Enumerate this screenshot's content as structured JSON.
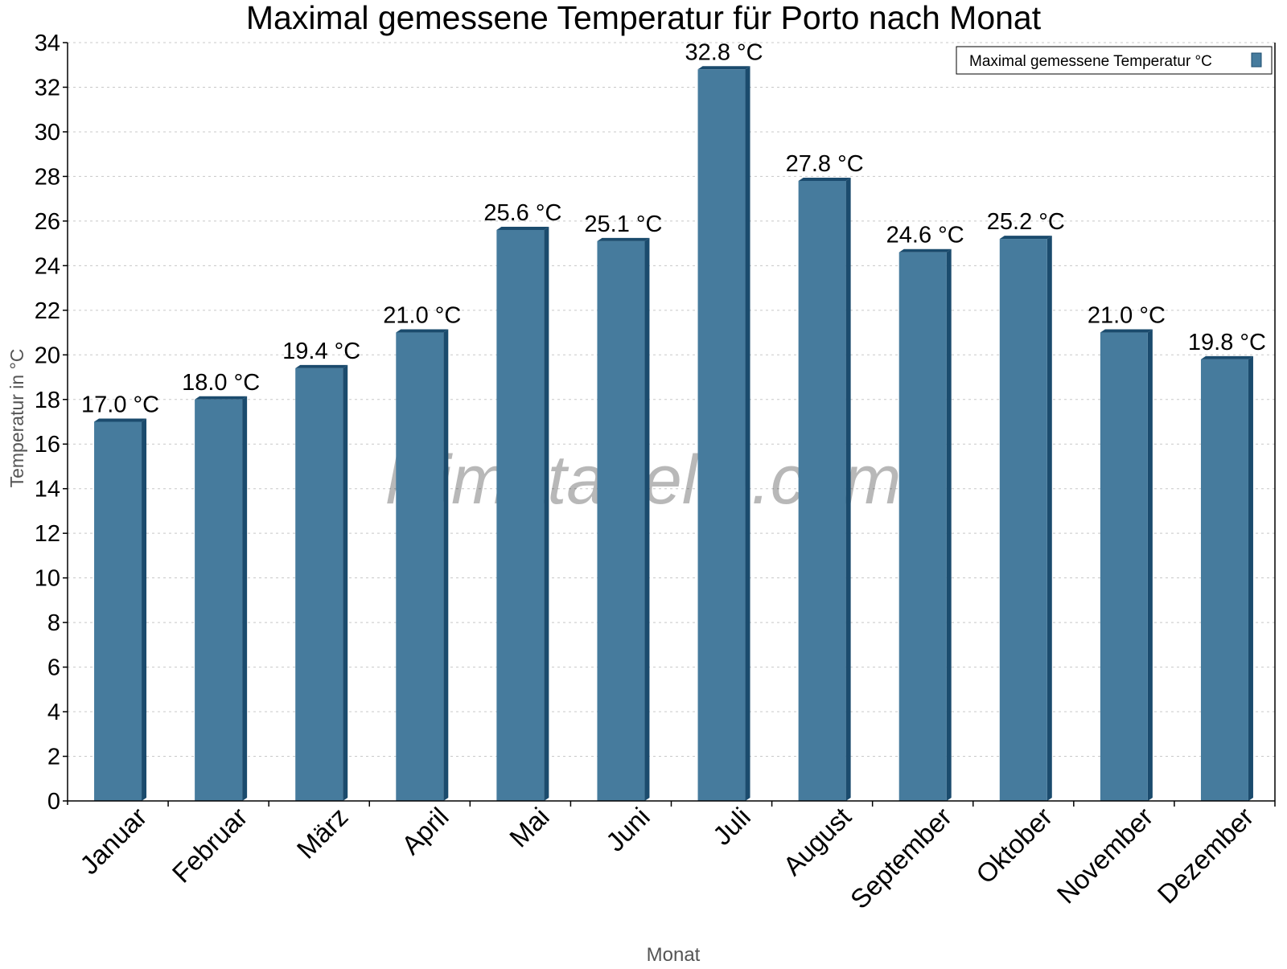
{
  "chart_data": {
    "type": "bar",
    "title": "Maximal gemessene Temperatur für Porto nach Monat",
    "xlabel": "Monat",
    "ylabel": "Temperatur in °C",
    "ylim": [
      0,
      34
    ],
    "yticks": [
      0,
      2,
      4,
      6,
      8,
      10,
      12,
      14,
      16,
      18,
      20,
      22,
      24,
      26,
      28,
      30,
      32,
      34
    ],
    "grid": true,
    "legend": {
      "position": "top-right",
      "entries": [
        "Maximal gemessene Temperatur °C"
      ]
    },
    "categories": [
      "Januar",
      "Februar",
      "März",
      "April",
      "Mai",
      "Juni",
      "Juli",
      "August",
      "September",
      "Oktober",
      "November",
      "Dezember"
    ],
    "series": [
      {
        "name": "Maximal gemessene Temperatur °C",
        "values": [
          17.0,
          18.0,
          19.4,
          21.0,
          25.6,
          25.1,
          32.8,
          27.8,
          24.6,
          25.2,
          21.0,
          19.8
        ]
      }
    ],
    "value_labels": [
      "17.0 °C",
      "18.0 °C",
      "19.4 °C",
      "21.0 °C",
      "25.6 °C",
      "25.1 °C",
      "32.8 °C",
      "27.8 °C",
      "24.6 °C",
      "25.2 °C",
      "21.0 °C",
      "19.8 °C"
    ],
    "watermark": "klimatabelle.com",
    "colors": {
      "bar": "#467b9d",
      "bar_side": "#1b4b6d",
      "grid": "#c8c8c8"
    }
  }
}
